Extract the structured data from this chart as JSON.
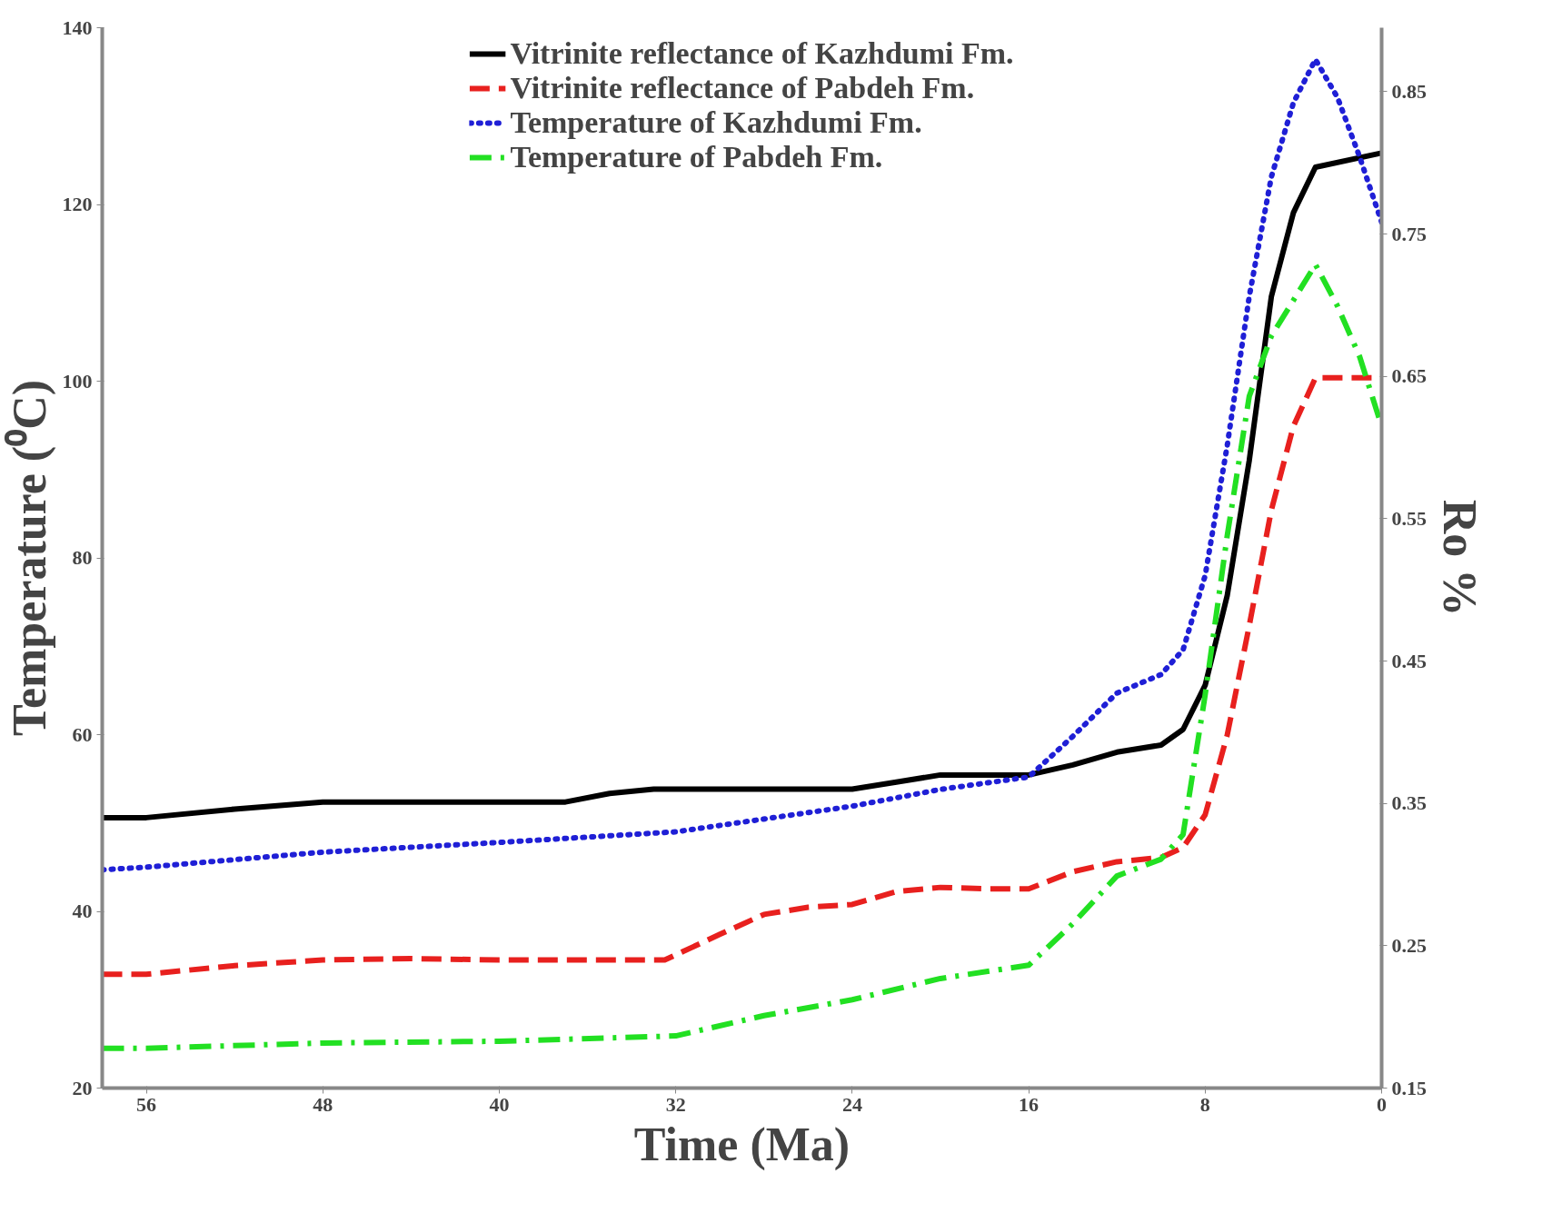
{
  "chart_data": {
    "type": "line",
    "xlabel": "Time (Ma)",
    "ylabel": "Temperature (⁰C)",
    "y2label": "Ro %",
    "xlim": [
      58,
      0
    ],
    "xticks": [
      56,
      48,
      40,
      32,
      24,
      16,
      8,
      0
    ],
    "ylim": [
      20,
      140
    ],
    "yticks": [
      20,
      40,
      60,
      80,
      100,
      120,
      140
    ],
    "y2lim": [
      0.15,
      0.895
    ],
    "y2ticks": [
      0.15,
      0.25,
      0.35,
      0.45,
      0.55,
      0.65,
      0.75,
      0.85
    ],
    "grid": false,
    "legend": "top",
    "marker": "none",
    "series": [
      {
        "name": "Vitrinite reflectance of Kazhdumi Fm.",
        "color": "#000000",
        "line_style": "solid",
        "axis": "y2",
        "x": [
          58,
          56,
          52,
          48,
          44,
          40,
          37,
          35,
          33,
          28,
          24,
          22,
          20,
          16,
          14,
          12,
          10,
          9,
          8,
          7,
          6,
          5,
          4,
          3,
          0
        ],
        "values": [
          0.34,
          0.34,
          0.346,
          0.351,
          0.351,
          0.351,
          0.351,
          0.357,
          0.36,
          0.36,
          0.36,
          0.365,
          0.37,
          0.37,
          0.377,
          0.386,
          0.391,
          0.402,
          0.433,
          0.496,
          0.591,
          0.706,
          0.765,
          0.797,
          0.807
        ]
      },
      {
        "name": "Vitrinite reflectance of Pabdeh Fm.",
        "color": "#e8201e",
        "line_style": "dashed",
        "axis": "y2",
        "x": [
          58,
          56,
          52,
          48,
          44,
          40,
          36,
          32.5,
          30,
          28,
          26,
          24,
          22,
          20,
          18,
          16,
          14,
          12,
          10,
          9,
          8,
          7,
          6,
          5,
          4,
          3,
          0
        ],
        "values": [
          0.23,
          0.23,
          0.236,
          0.24,
          0.241,
          0.24,
          0.24,
          0.24,
          0.258,
          0.272,
          0.277,
          0.279,
          0.288,
          0.291,
          0.29,
          0.29,
          0.302,
          0.309,
          0.312,
          0.319,
          0.342,
          0.398,
          0.475,
          0.556,
          0.615,
          0.649,
          0.649
        ]
      },
      {
        "name": "Temperature of Kazhdumi Fm.",
        "color": "#1f1fd6",
        "line_style": "dotted",
        "x": [
          58,
          56,
          48,
          40,
          32,
          24,
          20,
          16,
          14,
          12,
          10,
          9,
          8,
          7,
          6,
          5,
          4,
          3,
          2,
          1,
          0
        ],
        "values": [
          44.7,
          45.0,
          46.7,
          47.8,
          49.0,
          51.9,
          53.8,
          55.2,
          59.8,
          64.7,
          66.8,
          69.6,
          78.0,
          92.7,
          109.6,
          123.1,
          131.5,
          136.4,
          132.1,
          125.4,
          118.0
        ]
      },
      {
        "name": "Temperature of Pabdeh Fm.",
        "color": "#22e022",
        "line_style": "dashdot",
        "x": [
          58,
          56,
          48,
          40,
          32,
          28,
          24,
          20,
          16,
          14,
          12,
          10,
          9,
          8,
          7,
          6,
          5,
          3,
          2,
          1,
          0
        ],
        "values": [
          24.5,
          24.5,
          25.1,
          25.3,
          25.9,
          28.2,
          30.0,
          32.4,
          33.9,
          38.6,
          44.0,
          45.9,
          48.7,
          64.5,
          82.5,
          98.3,
          105.1,
          113.2,
          108.5,
          102.8,
          94.9
        ]
      }
    ]
  }
}
